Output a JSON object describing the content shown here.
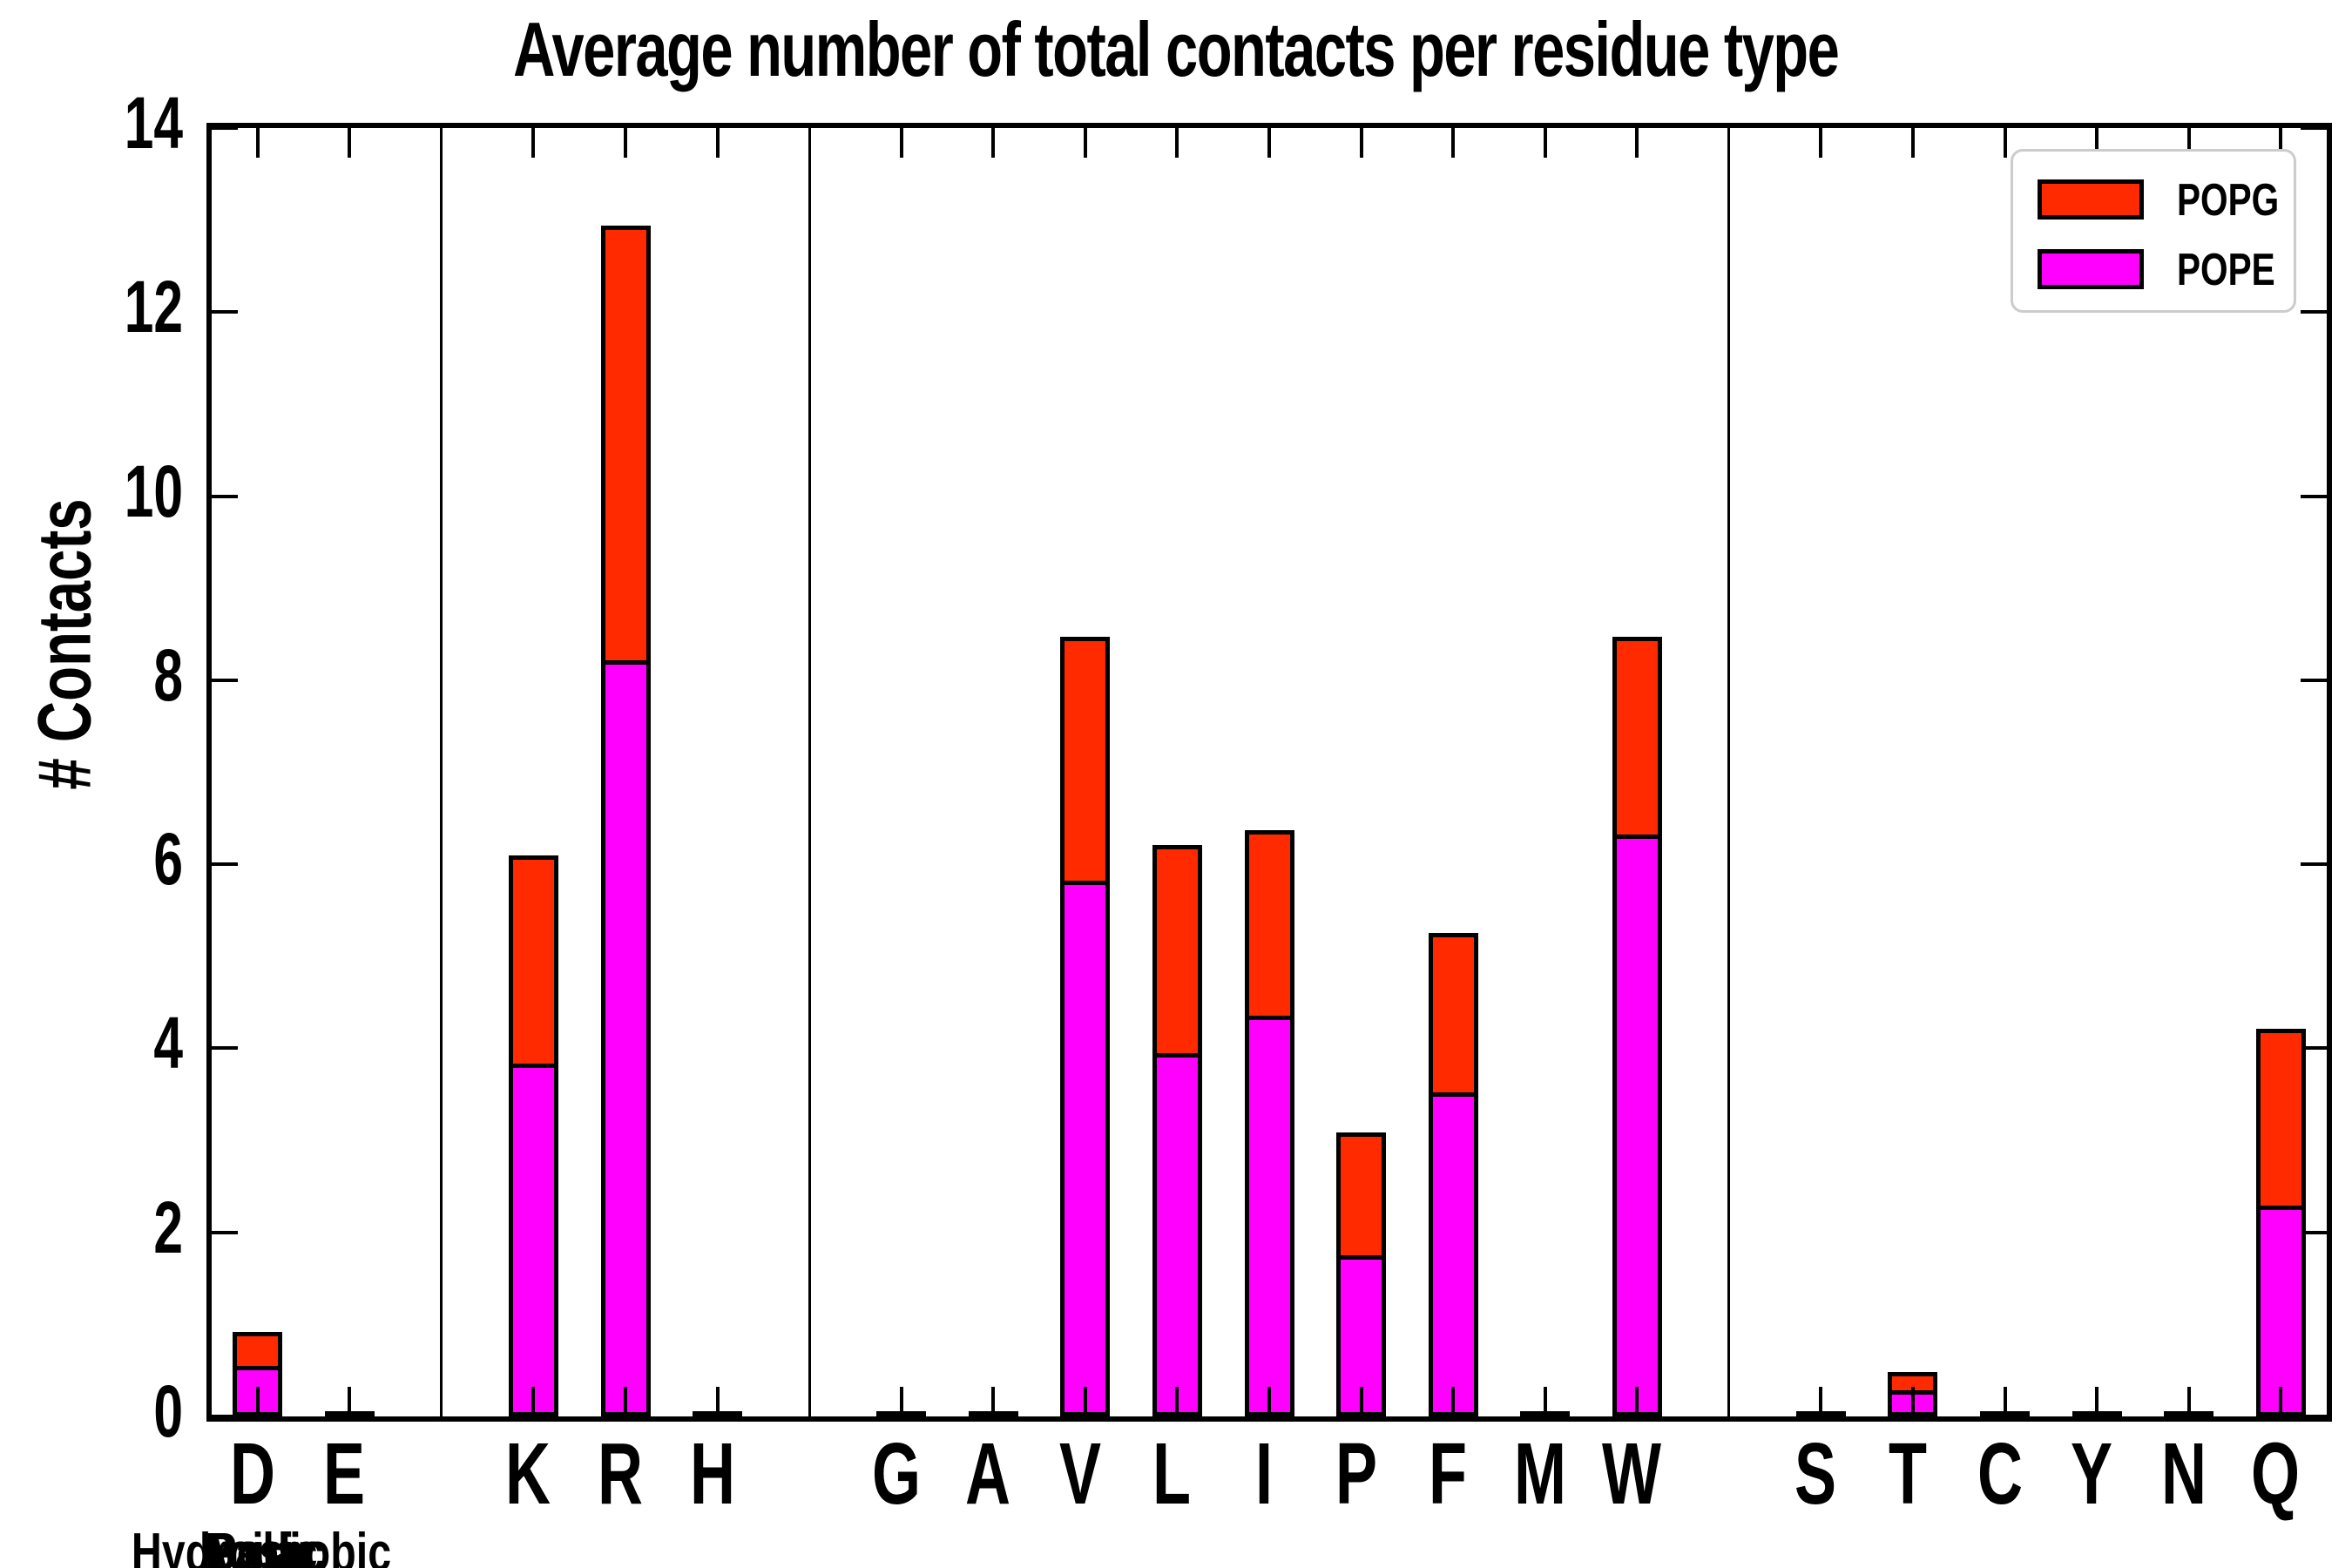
{
  "title": "Average number of total contacts per residue type",
  "ylabel": "# Contacts",
  "legend": {
    "items": [
      {
        "label": "POPG",
        "color": "#ff2a00"
      },
      {
        "label": "POPE",
        "color": "#ff00ff"
      }
    ]
  },
  "colors": {
    "popg": "#ff2a00",
    "pope": "#ff00ff",
    "axis": "#000000",
    "legend_border": "#cccccc",
    "background": "#ffffff"
  },
  "chart_data": {
    "type": "bar",
    "stacked": true,
    "title": "Average number of total contacts per residue type",
    "xlabel": "",
    "ylabel": "# Contacts",
    "ylim": [
      0,
      14
    ],
    "yticks": [
      0,
      2,
      4,
      6,
      8,
      10,
      12,
      14
    ],
    "grid": false,
    "legend_position": "upper right",
    "series_order_bottom_to_top": [
      "POPE",
      "POPG"
    ],
    "groups": [
      {
        "label": "Acidic",
        "categories": [
          {
            "label": "D",
            "POPE": 0.55,
            "POPG": 0.37
          },
          {
            "label": "E",
            "POPE": 0.01,
            "POPG": 0.01
          }
        ]
      },
      {
        "label": "Basic",
        "categories": [
          {
            "label": "K",
            "POPE": 3.83,
            "POPG": 2.27
          },
          {
            "label": "R",
            "POPE": 8.22,
            "POPG": 4.72
          },
          {
            "label": "H",
            "POPE": 0.01,
            "POPG": 0.01
          }
        ]
      },
      {
        "label": "Hydrophobic",
        "categories": [
          {
            "label": "G",
            "POPE": 0.01,
            "POPG": 0.01
          },
          {
            "label": "A",
            "POPE": 0.01,
            "POPG": 0.01
          },
          {
            "label": "V",
            "POPE": 5.82,
            "POPG": 2.65
          },
          {
            "label": "L",
            "POPE": 3.95,
            "POPG": 2.26
          },
          {
            "label": "I",
            "POPE": 4.35,
            "POPG": 2.02
          },
          {
            "label": "P",
            "POPE": 1.75,
            "POPG": 1.34
          },
          {
            "label": "F",
            "POPE": 3.52,
            "POPG": 1.73
          },
          {
            "label": "M",
            "POPE": 0.02,
            "POPG": 0.01
          },
          {
            "label": "W",
            "POPE": 6.32,
            "POPG": 2.15
          }
        ]
      },
      {
        "label": "Polar",
        "categories": [
          {
            "label": "S",
            "POPE": 0.02,
            "POPG": 0.01
          },
          {
            "label": "T",
            "POPE": 0.28,
            "POPG": 0.2
          },
          {
            "label": "C",
            "POPE": 0.01,
            "POPG": 0.01
          },
          {
            "label": "Y",
            "POPE": 0.01,
            "POPG": 0.01
          },
          {
            "label": "N",
            "POPE": 0.02,
            "POPG": 0.01
          },
          {
            "label": "Q",
            "POPE": 2.29,
            "POPG": 1.92
          }
        ]
      }
    ]
  }
}
